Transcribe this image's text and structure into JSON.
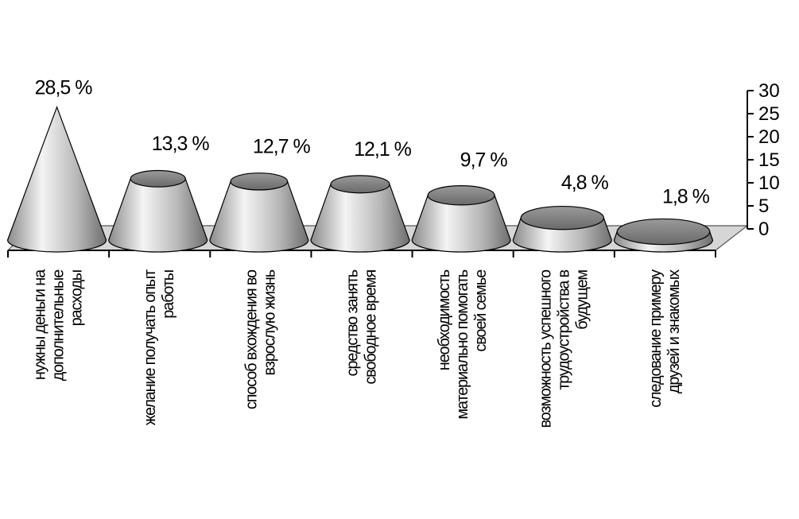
{
  "chart_data": {
    "type": "bar",
    "subtype": "3d-cone",
    "title": "",
    "xlabel": "",
    "ylabel": "",
    "ylim": [
      0,
      30
    ],
    "yticks": [
      0,
      5,
      10,
      15,
      20,
      25,
      30
    ],
    "y_axis_side": "right",
    "grid": false,
    "legend": "none",
    "colors": {
      "body": "#b0b0b0",
      "top": "#808080",
      "floor": "#d6d6d6",
      "outline": "#000000"
    },
    "categories": [
      [
        "нужны деньги на",
        "дополнительные",
        "расходы"
      ],
      [
        "желание получать опыт",
        "работы"
      ],
      [
        "способ вхождения во",
        "взрослую жизнь"
      ],
      [
        "средство занять",
        "свободное время"
      ],
      [
        "необходимость",
        "материально помогать",
        "своей семье"
      ],
      [
        "возможность успешного",
        "трудоустройства в",
        "будущем"
      ],
      [
        "следование примеру",
        "друзей и знакомых"
      ]
    ],
    "values": [
      28.5,
      13.3,
      12.7,
      12.1,
      9.7,
      4.8,
      1.8
    ],
    "value_labels": [
      "28,5 %",
      "13,3 %",
      "12,7 %",
      "12,1 %",
      "9,7 %",
      "4,8 %",
      "1,8 %"
    ]
  }
}
